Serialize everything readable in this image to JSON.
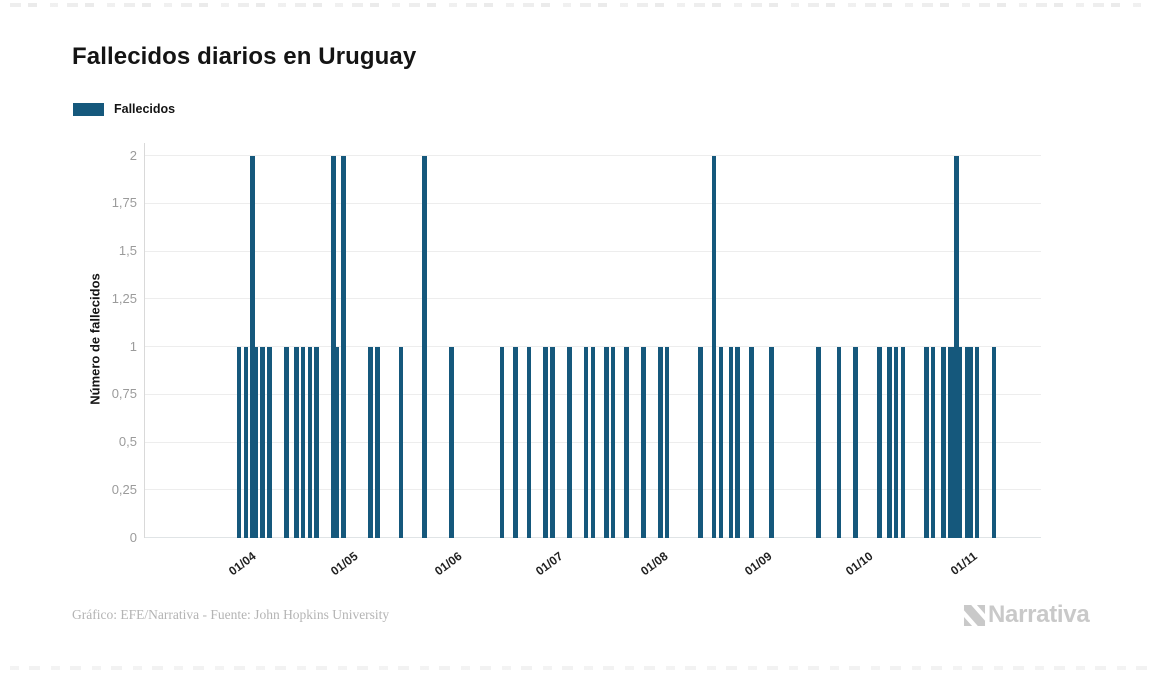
{
  "header": {
    "title": "Fallecidos diarios en Uruguay"
  },
  "legend": {
    "label": "Fallecidos",
    "swatch_color": "#15587c"
  },
  "chart_data": {
    "type": "bar",
    "title": "Fallecidos diarios en Uruguay",
    "xlabel": "",
    "ylabel": "Número de fallecidos",
    "ylim": [
      0,
      2
    ],
    "grid": true,
    "legend_position": "top-left",
    "bar_color": "#15587c",
    "y_ticks": [
      {
        "label": "0",
        "value": 0
      },
      {
        "label": "0,25",
        "value": 0.25
      },
      {
        "label": "0,5",
        "value": 0.5
      },
      {
        "label": "0,75",
        "value": 0.75
      },
      {
        "label": "1",
        "value": 1
      },
      {
        "label": "1,25",
        "value": 1.25
      },
      {
        "label": "1,5",
        "value": 1.5
      },
      {
        "label": "1,75",
        "value": 1.75
      },
      {
        "label": "2",
        "value": 2
      }
    ],
    "x_tick_labels": [
      "01/04",
      "01/05",
      "01/06",
      "01/07",
      "01/08",
      "01/09",
      "01/10",
      "01/11"
    ],
    "series": [
      {
        "name": "Fallecidos",
        "points": [
          {
            "date": "31/03",
            "value": 1
          },
          {
            "date": "02/04",
            "value": 1
          },
          {
            "date": "04/04",
            "value": 2
          },
          {
            "date": "05/04",
            "value": 1
          },
          {
            "date": "07/04",
            "value": 1
          },
          {
            "date": "09/04",
            "value": 1
          },
          {
            "date": "14/04",
            "value": 1
          },
          {
            "date": "17/04",
            "value": 1
          },
          {
            "date": "19/04",
            "value": 1
          },
          {
            "date": "21/04",
            "value": 1
          },
          {
            "date": "23/04",
            "value": 1
          },
          {
            "date": "28/04",
            "value": 2
          },
          {
            "date": "29/04",
            "value": 1
          },
          {
            "date": "01/05",
            "value": 2
          },
          {
            "date": "09/05",
            "value": 1
          },
          {
            "date": "11/05",
            "value": 1
          },
          {
            "date": "18/05",
            "value": 1
          },
          {
            "date": "25/05",
            "value": 2
          },
          {
            "date": "02/06",
            "value": 1
          },
          {
            "date": "17/06",
            "value": 1
          },
          {
            "date": "21/06",
            "value": 1
          },
          {
            "date": "25/06",
            "value": 1
          },
          {
            "date": "30/06",
            "value": 1
          },
          {
            "date": "02/07",
            "value": 1
          },
          {
            "date": "07/07",
            "value": 1
          },
          {
            "date": "12/07",
            "value": 1
          },
          {
            "date": "14/07",
            "value": 1
          },
          {
            "date": "18/07",
            "value": 1
          },
          {
            "date": "20/07",
            "value": 1
          },
          {
            "date": "24/07",
            "value": 1
          },
          {
            "date": "29/07",
            "value": 1
          },
          {
            "date": "03/08",
            "value": 1
          },
          {
            "date": "05/08",
            "value": 1
          },
          {
            "date": "15/08",
            "value": 1
          },
          {
            "date": "19/08",
            "value": 2
          },
          {
            "date": "21/08",
            "value": 1
          },
          {
            "date": "24/08",
            "value": 1
          },
          {
            "date": "26/08",
            "value": 1
          },
          {
            "date": "30/08",
            "value": 1
          },
          {
            "date": "05/09",
            "value": 1
          },
          {
            "date": "19/09",
            "value": 1
          },
          {
            "date": "25/09",
            "value": 1
          },
          {
            "date": "30/09",
            "value": 1
          },
          {
            "date": "07/10",
            "value": 1
          },
          {
            "date": "10/10",
            "value": 1
          },
          {
            "date": "12/10",
            "value": 1
          },
          {
            "date": "14/10",
            "value": 1
          },
          {
            "date": "21/10",
            "value": 1
          },
          {
            "date": "23/10",
            "value": 1
          },
          {
            "date": "26/10",
            "value": 1
          },
          {
            "date": "28/10",
            "value": 1
          },
          {
            "date": "29/10",
            "value": 1
          },
          {
            "date": "30/10",
            "value": 2
          },
          {
            "date": "31/10",
            "value": 1
          },
          {
            "date": "02/11",
            "value": 1
          },
          {
            "date": "03/11",
            "value": 1
          },
          {
            "date": "05/11",
            "value": 1
          },
          {
            "date": "10/11",
            "value": 1
          }
        ]
      }
    ]
  },
  "footer": {
    "credit": "Gráfico: EFE/Narrativa - Fuente: John Hopkins University",
    "brand": "Narrativa"
  }
}
